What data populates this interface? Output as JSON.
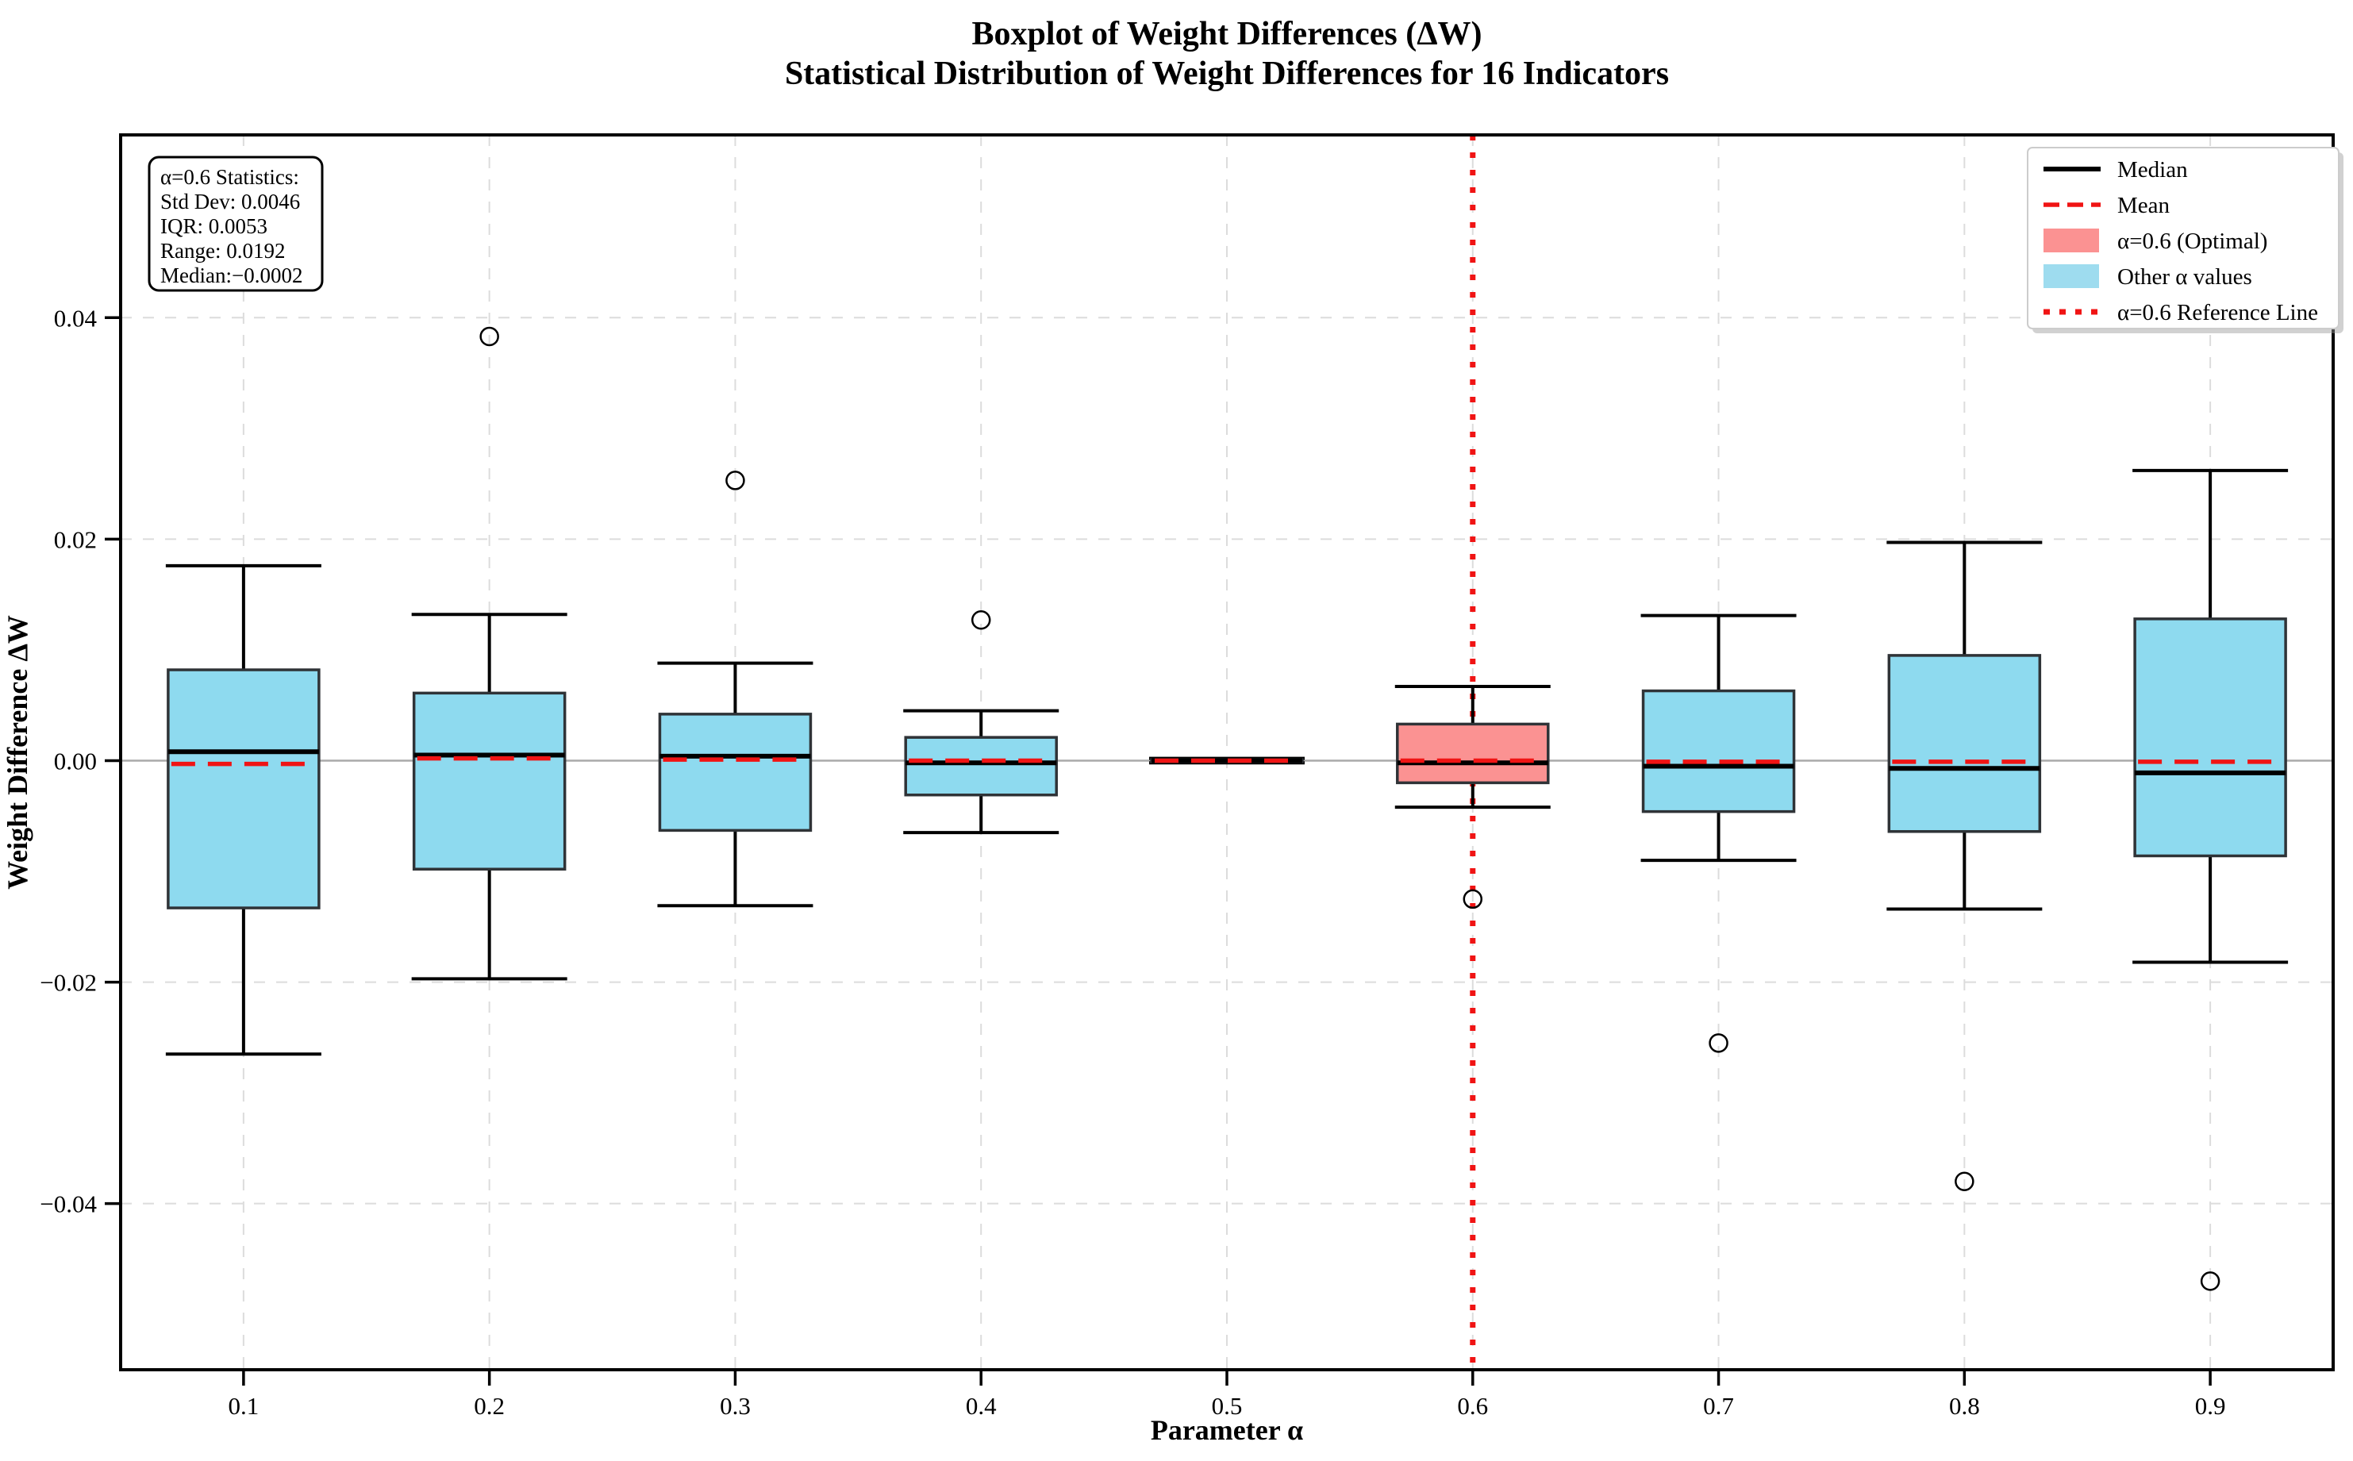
{
  "title": "Boxplot of Weight Differences (ΔW)",
  "subtitle": "Statistical Distribution of Weight Differences for 16 Indicators",
  "stats_box": {
    "lines": [
      "α=0.6 Statistics:",
      "Std Dev: 0.0046",
      "IQR: 0.0053",
      "Range: 0.0192",
      "Median:−0.0002"
    ]
  },
  "legend": {
    "items": [
      {
        "label": "Median",
        "type": "line-solid",
        "color": "#000000"
      },
      {
        "label": "Mean",
        "type": "line-dashed",
        "color": "#f01414"
      },
      {
        "label": "α=0.6 (Optimal)",
        "type": "patch",
        "color": "#fb9292"
      },
      {
        "label": "Other α values",
        "type": "patch",
        "color": "#9edcef"
      },
      {
        "label": "α=0.6 Reference Line",
        "type": "line-dotted",
        "color": "#f01414"
      }
    ]
  },
  "colors": {
    "optimal_fill": "#fb9292",
    "other_fill": "#8edaef",
    "box_edge": "#2f3337",
    "median": "#000000",
    "mean": "#f01414",
    "reference": "#f01414",
    "whisker": "#000000",
    "outlier_edge": "#000000",
    "zero_line": "#aaaaaa",
    "grid": "#dcdcdc",
    "frame": "#000000",
    "legend_border": "#cccccc",
    "legend_shadow": "#999999"
  },
  "chart_data": {
    "type": "boxplot",
    "title": "Boxplot of Weight Differences (ΔW)",
    "subtitle": "Statistical Distribution of Weight Differences for 16 Indicators",
    "xlabel": "Parameter α",
    "ylabel": "Weight Difference ΔW",
    "x_ticklabels": [
      "0.1",
      "0.2",
      "0.3",
      "0.4",
      "0.5",
      "0.6",
      "0.7",
      "0.8",
      "0.9"
    ],
    "y_ticks": [
      0.04,
      0.02,
      0.0,
      -0.02,
      -0.04
    ],
    "y_ticklabels": [
      "0.04",
      "0.02",
      "0.00",
      "−0.02",
      "−0.04"
    ],
    "ylim": [
      -0.055,
      0.0565
    ],
    "grid": true,
    "zero_line": 0.0,
    "reference_x": "0.6",
    "legend_position": "upper right",
    "series": [
      {
        "alpha": "0.1",
        "whislo": -0.0265,
        "q1": -0.0133,
        "med": 0.0008,
        "mean": -0.0003,
        "q3": 0.0082,
        "whishi": 0.0176,
        "fliers": [],
        "optimal": false
      },
      {
        "alpha": "0.2",
        "whislo": -0.0197,
        "q1": -0.0098,
        "med": 0.0005,
        "mean": 0.0002,
        "q3": 0.0061,
        "whishi": 0.0132,
        "fliers": [
          0.0383
        ],
        "optimal": false
      },
      {
        "alpha": "0.3",
        "whislo": -0.0131,
        "q1": -0.0063,
        "med": 0.0004,
        "mean": 0.0001,
        "q3": 0.0042,
        "whishi": 0.0088,
        "fliers": [
          0.0253
        ],
        "optimal": false
      },
      {
        "alpha": "0.4",
        "whislo": -0.0065,
        "q1": -0.0031,
        "med": -0.0002,
        "mean": 0.0,
        "q3": 0.0021,
        "whishi": 0.0045,
        "fliers": [
          0.0127
        ],
        "optimal": false
      },
      {
        "alpha": "0.5",
        "whislo": -0.0002,
        "q1": -0.0001,
        "med": 0.0,
        "mean": 0.0,
        "q3": 0.0001,
        "whishi": 0.0002,
        "fliers": [],
        "optimal": false
      },
      {
        "alpha": "0.6",
        "whislo": -0.0042,
        "q1": -0.002,
        "med": -0.0002,
        "mean": 0.0,
        "q3": 0.0033,
        "whishi": 0.0067,
        "fliers": [
          -0.0125
        ],
        "optimal": true
      },
      {
        "alpha": "0.7",
        "whislo": -0.009,
        "q1": -0.0046,
        "med": -0.0005,
        "mean": -0.0001,
        "q3": 0.0063,
        "whishi": 0.0131,
        "fliers": [
          -0.0255
        ],
        "optimal": false
      },
      {
        "alpha": "0.8",
        "whislo": -0.0134,
        "q1": -0.0064,
        "med": -0.0007,
        "mean": -0.0001,
        "q3": 0.0095,
        "whishi": 0.0197,
        "fliers": [
          -0.038
        ],
        "optimal": false
      },
      {
        "alpha": "0.9",
        "whislo": -0.0182,
        "q1": -0.0086,
        "med": -0.0011,
        "mean": -0.0001,
        "q3": 0.0128,
        "whishi": 0.0262,
        "fliers": [
          -0.047
        ],
        "optimal": false
      }
    ],
    "stats_annotation": [
      "α=0.6 Statistics:",
      "Std Dev: 0.0046",
      "IQR: 0.0053",
      "Range: 0.0192",
      "Median:−0.0002"
    ],
    "legend_entries": [
      "Median",
      "Mean",
      "α=0.6 (Optimal)",
      "Other α values",
      "α=0.6 Reference Line"
    ]
  }
}
